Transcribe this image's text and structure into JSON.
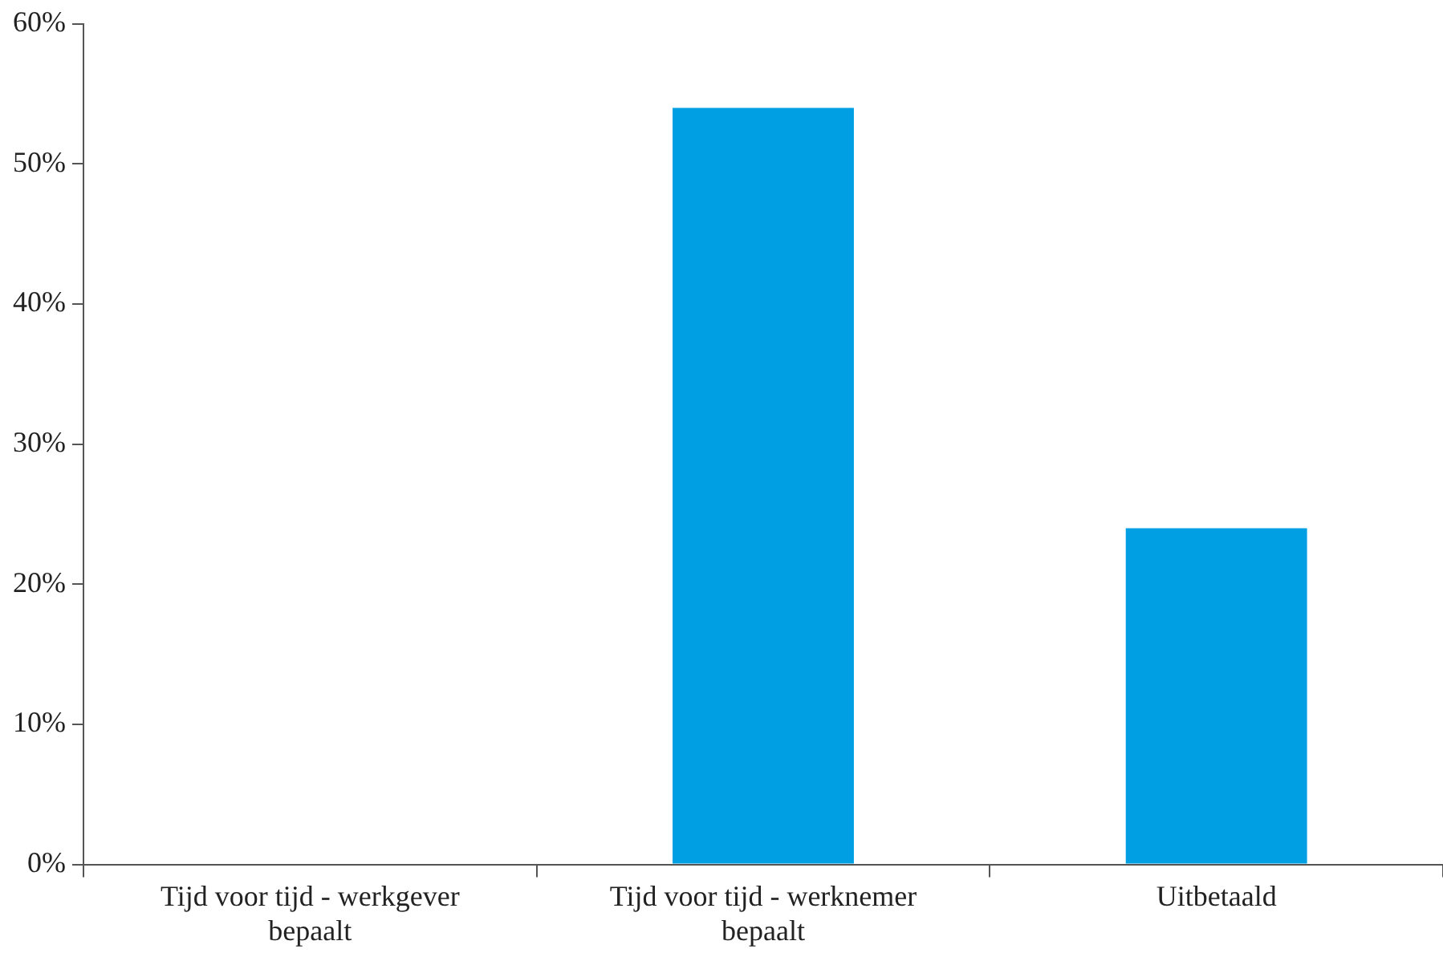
{
  "chart_data": {
    "type": "bar",
    "categories": [
      "Tijd voor tijd - werkgever bepaalt",
      "Tijd voor tijd - werknemer bepaalt",
      "Uitbetaald"
    ],
    "values": [
      0,
      54,
      24
    ],
    "color": "#009fe3",
    "ylim": [
      0,
      60
    ],
    "yticks": [
      {
        "value": 0,
        "label": "0%"
      },
      {
        "value": 10,
        "label": "10%"
      },
      {
        "value": 20,
        "label": "20%"
      },
      {
        "value": 30,
        "label": "30%"
      },
      {
        "value": 40,
        "label": "40%"
      },
      {
        "value": 50,
        "label": "50%"
      },
      {
        "value": 60,
        "label": "60%"
      }
    ],
    "grid": false,
    "legend": false
  }
}
